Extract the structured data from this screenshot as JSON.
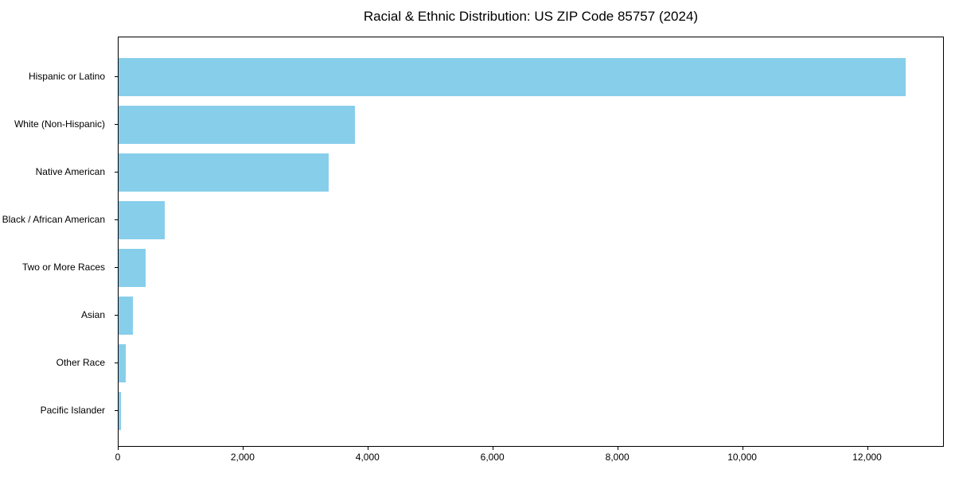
{
  "chart_data": {
    "type": "bar",
    "orientation": "horizontal",
    "title": "Racial & Ethnic Distribution: US ZIP Code 85757 (2024)",
    "categories": [
      "Hispanic or Latino",
      "White (Non-Hispanic)",
      "Native American",
      "Black / African American",
      "Two or More Races",
      "Asian",
      "Other Race",
      "Pacific Islander"
    ],
    "values": [
      12600,
      3780,
      3360,
      740,
      435,
      230,
      115,
      40
    ],
    "xlabel": "",
    "ylabel": "",
    "xlim": [
      0,
      13230
    ],
    "x_ticks": [
      0,
      2000,
      4000,
      6000,
      8000,
      10000,
      12000
    ],
    "x_tick_labels": [
      "0",
      "2,000",
      "4,000",
      "6,000",
      "8,000",
      "10,000",
      "12,000"
    ],
    "grid": false,
    "legend": null,
    "bar_color": "#87CEEB",
    "frame_color": "#000000",
    "text_color": "#000000",
    "background_color": "#ffffff"
  }
}
